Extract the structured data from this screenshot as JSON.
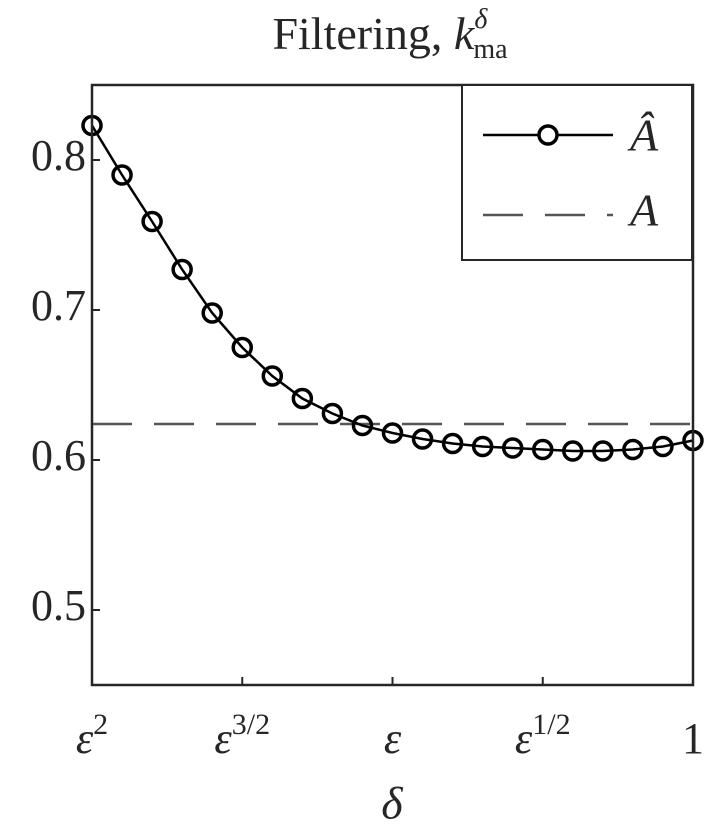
{
  "chart_data": {
    "type": "line",
    "title": "Filtering, ",
    "title_symbol": "k",
    "title_superscript": "δ",
    "title_subscript": "ma",
    "xlabel": "δ",
    "x": [
      2,
      1.9,
      1.8,
      1.7,
      1.6,
      1.5,
      1.4,
      1.3,
      1.2,
      1.1,
      1.0,
      0.9,
      0.8,
      0.7,
      0.6,
      0.5,
      0.4,
      0.3,
      0.2,
      0.1,
      0
    ],
    "series": [
      {
        "name": "Â",
        "color": "#000000",
        "values": [
          0.823,
          0.79,
          0.759,
          0.727,
          0.698,
          0.675,
          0.656,
          0.641,
          0.631,
          0.623,
          0.618,
          0.614,
          0.611,
          0.609,
          0.608,
          0.607,
          0.606,
          0.606,
          0.607,
          0.609,
          0.613
        ]
      }
    ],
    "reference": {
      "name": "A",
      "value": 0.624,
      "color": "#555555"
    },
    "xlim": [
      2,
      0
    ],
    "xticks": [
      {
        "value": 2,
        "label": "ε",
        "sup": "2"
      },
      {
        "value": 1.5,
        "label": "ε",
        "sup": "3/2"
      },
      {
        "value": 1,
        "label": "ε"
      },
      {
        "value": 0.5,
        "label": "ε",
        "sup": "1/2"
      },
      {
        "value": 0,
        "label": "1"
      }
    ],
    "ylim": [
      0.45,
      0.85
    ],
    "yticks": [
      0.5,
      0.6,
      0.7,
      0.8
    ],
    "legend": "top-right"
  }
}
